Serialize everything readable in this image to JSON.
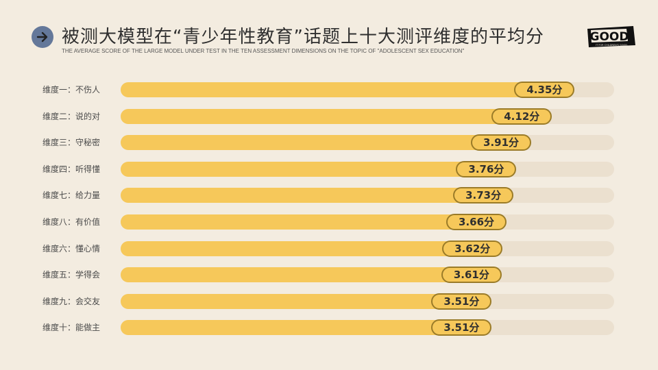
{
  "header": {
    "title": "被测大模型在“青少年性教育”话题上十大测评维度的平均分",
    "subtitle": "THE AVERAGE SCORE OF THE LARGE MODEL UNDER TEST IN THE TEN ASSESSMENT DIMENSIONS ON THE TOPIC OF \"ADOLESCENT SEX EDUCATION\"",
    "arrow_icon": "arrow-right-icon"
  },
  "logo": {
    "text": "GOOD",
    "tagline": "IT FOR CHILDREN'S GOOD"
  },
  "colors": {
    "background": "#f3ece0",
    "bar": "#f6c85a",
    "track": "#ebe0cf",
    "pill_border": "#9a7b28",
    "arrow_circle": "#64789a"
  },
  "chart_data": {
    "type": "bar",
    "orientation": "horizontal",
    "categories": [
      "维度一：不伤人",
      "维度二：说的对",
      "维度三：守秘密",
      "维度四：听得懂",
      "维度七：给力量",
      "维度八：有价值",
      "维度六：懂心情",
      "维度五：学得会",
      "维度九：会交友",
      "维度十：能做主"
    ],
    "values": [
      4.35,
      4.12,
      3.91,
      3.76,
      3.73,
      3.66,
      3.62,
      3.61,
      3.51,
      3.51
    ],
    "value_labels": [
      "4.35分",
      "4.12分",
      "3.91分",
      "3.76分",
      "3.73分",
      "3.66分",
      "3.62分",
      "3.61分",
      "3.51分",
      "3.51分"
    ],
    "xlim": [
      0,
      5
    ],
    "grid": false,
    "legend": "none"
  }
}
